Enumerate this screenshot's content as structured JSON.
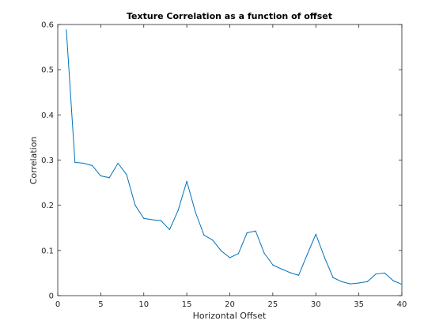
{
  "chart_data": {
    "type": "line",
    "title": "Texture Correlation as a function of offset",
    "xlabel": "Horizontal Offset",
    "ylabel": "Correlation",
    "xlim": [
      0,
      40
    ],
    "ylim": [
      0,
      0.6
    ],
    "xticks": [
      "0",
      "5",
      "10",
      "15",
      "20",
      "25",
      "30",
      "35",
      "40"
    ],
    "yticks": [
      "0",
      "0.1",
      "0.2",
      "0.3",
      "0.4",
      "0.5",
      "0.6"
    ],
    "grid": false,
    "line_color": "#0072bd",
    "series": [
      {
        "x": [
          1,
          2,
          3,
          4,
          5,
          6,
          7,
          8,
          9,
          10,
          11,
          12,
          13,
          14,
          15,
          16,
          17,
          18,
          19,
          20,
          21,
          22,
          23,
          24,
          25,
          26,
          27,
          28,
          29,
          30,
          31,
          32,
          33,
          34,
          35,
          36,
          37,
          38,
          39,
          40
        ],
        "values": [
          0.588,
          0.295,
          0.293,
          0.288,
          0.265,
          0.261,
          0.293,
          0.268,
          0.2,
          0.171,
          0.168,
          0.166,
          0.146,
          0.189,
          0.253,
          0.185,
          0.134,
          0.123,
          0.099,
          0.084,
          0.093,
          0.139,
          0.143,
          0.094,
          0.068,
          0.059,
          0.051,
          0.045,
          0.091,
          0.136,
          0.085,
          0.04,
          0.031,
          0.026,
          0.028,
          0.031,
          0.048,
          0.05,
          0.033,
          0.025
        ]
      }
    ]
  }
}
